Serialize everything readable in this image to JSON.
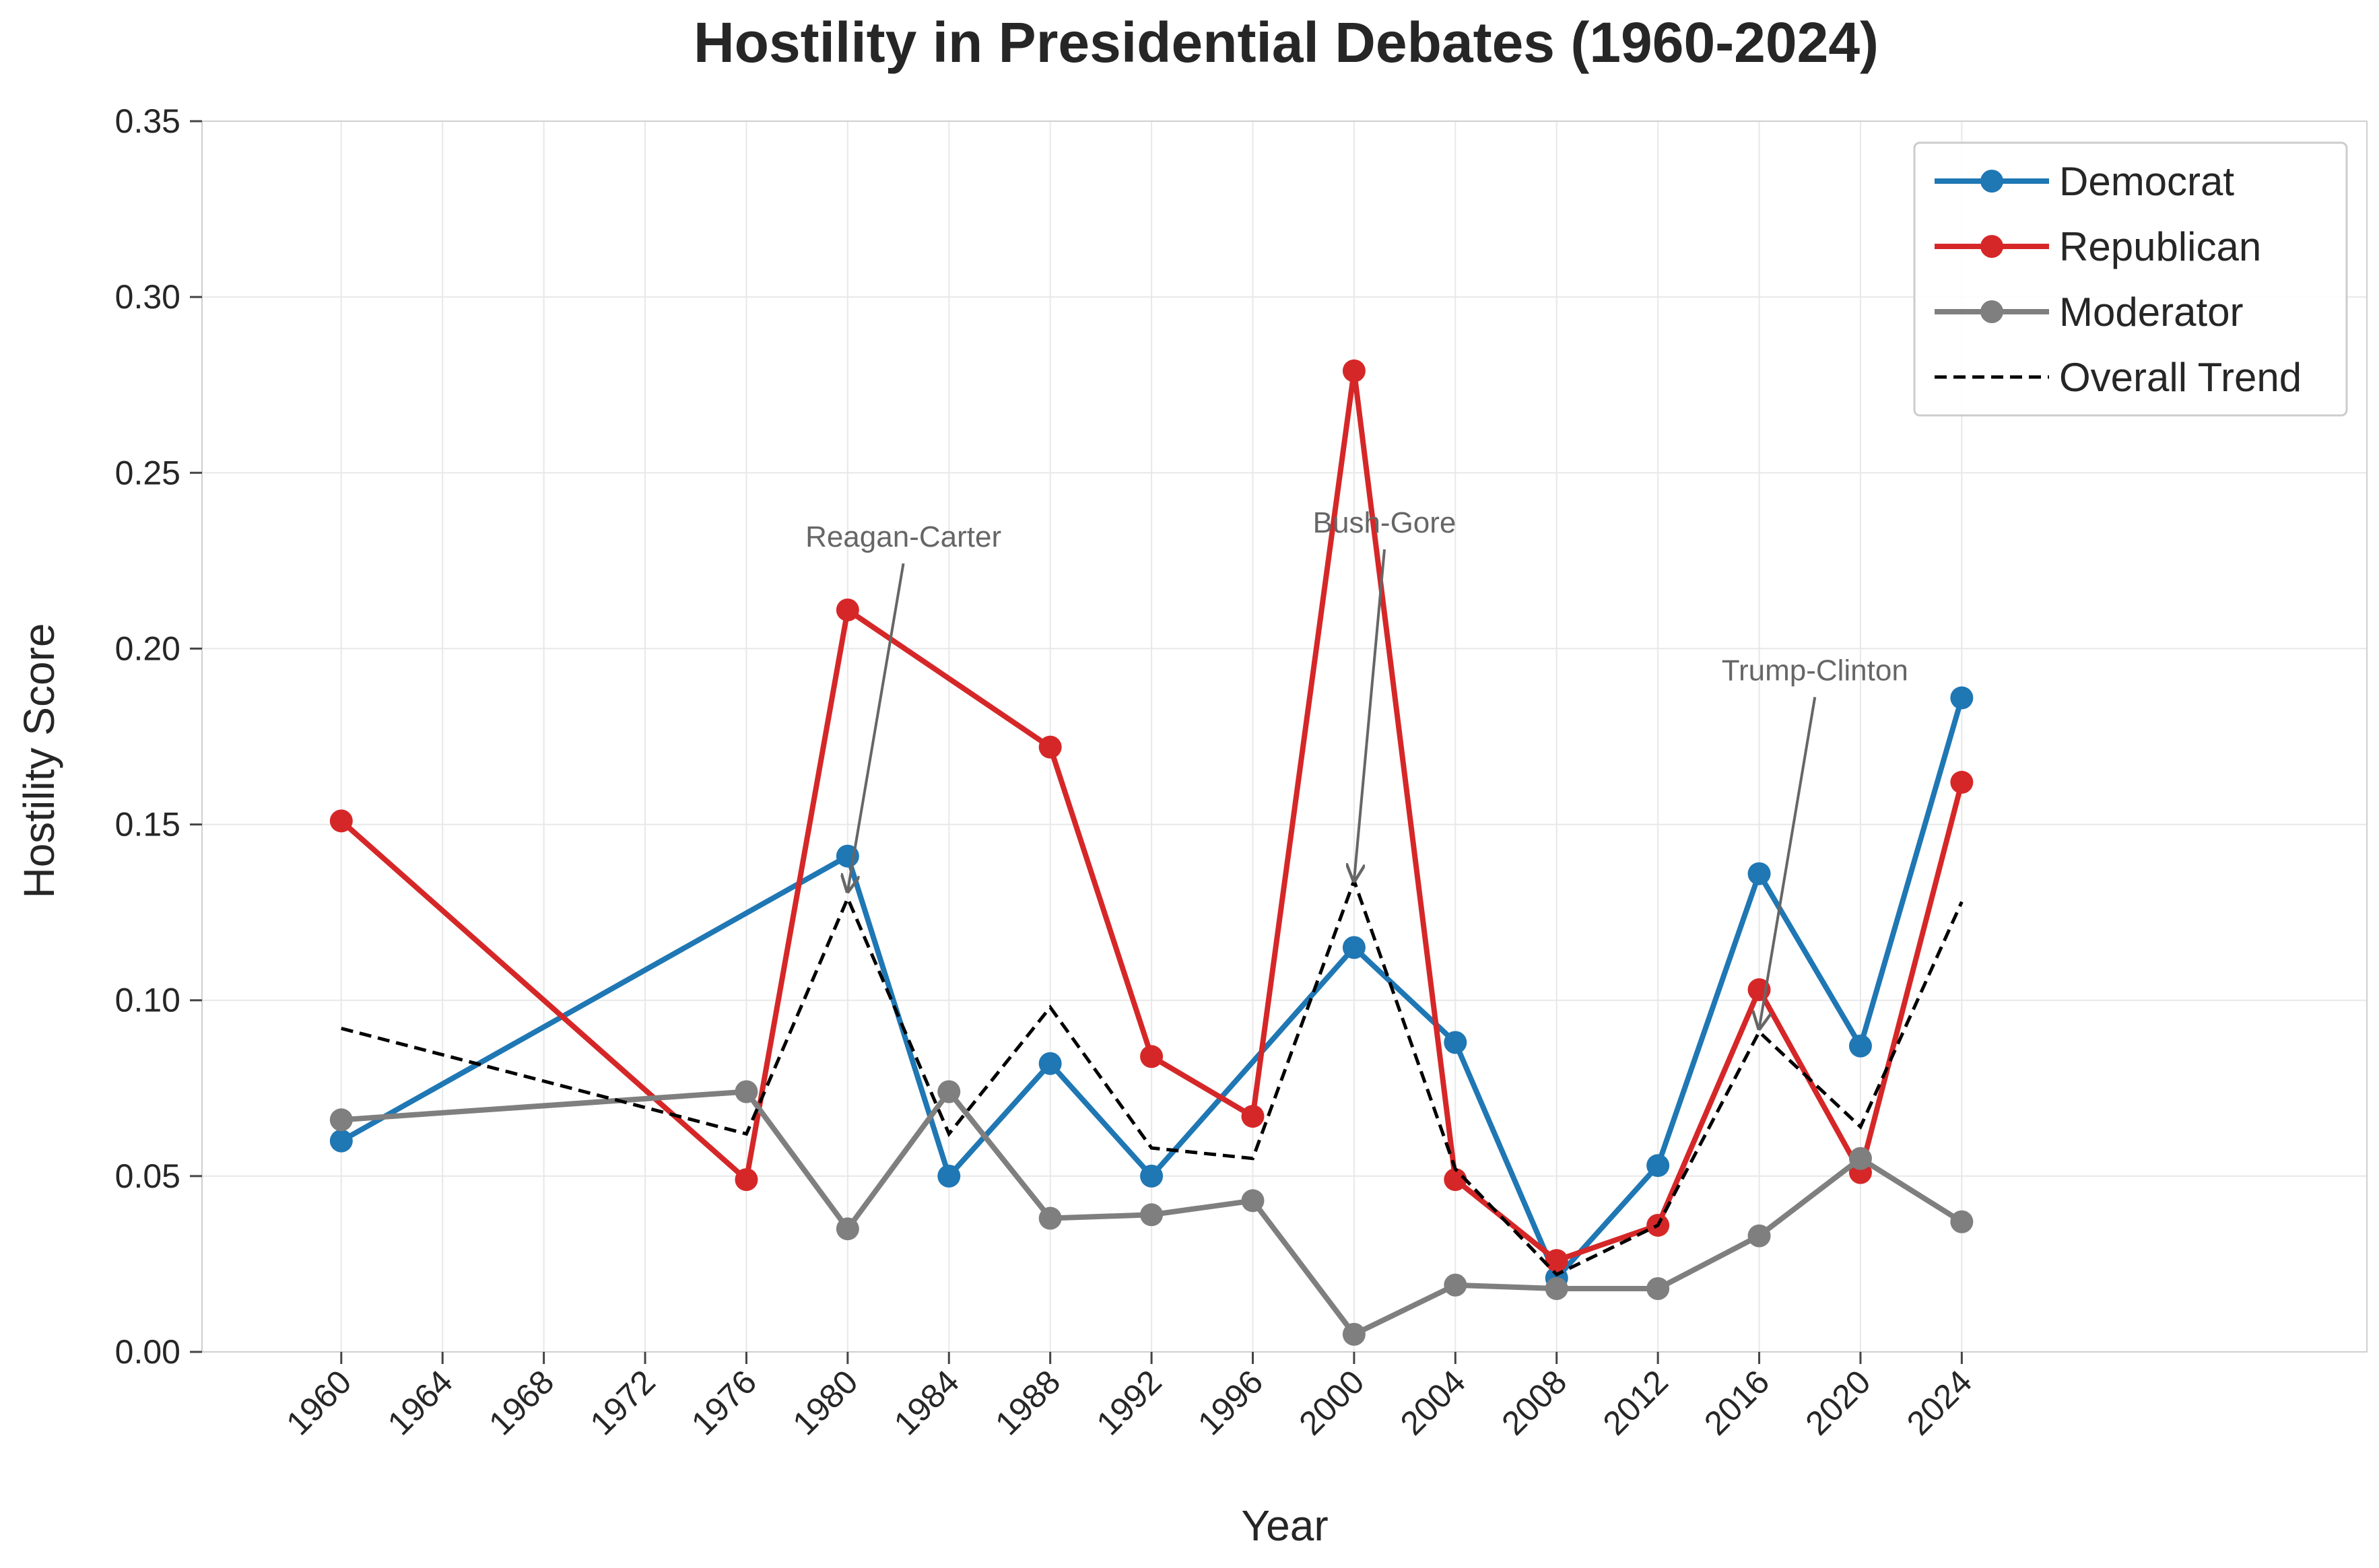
{
  "chart_data": {
    "type": "line",
    "title": "Hostility in Presidential Debates (1960-2024)",
    "xlabel": "Year",
    "ylabel": "Hostility Score",
    "xlim": [
      1954.5,
      2040
    ],
    "ylim": [
      0,
      0.35
    ],
    "x_ticks": [
      1960,
      1964,
      1968,
      1972,
      1976,
      1980,
      1984,
      1988,
      1992,
      1996,
      2000,
      2004,
      2008,
      2012,
      2016,
      2020,
      2024
    ],
    "y_ticks": [
      0.0,
      0.05,
      0.1,
      0.15,
      0.2,
      0.25,
      0.3,
      0.35
    ],
    "y_tick_labels": [
      "0.00",
      "0.05",
      "0.10",
      "0.15",
      "0.20",
      "0.25",
      "0.30",
      "0.35"
    ],
    "x_tick_rotation": 45,
    "grid": true,
    "legend_position": "top-right",
    "series": [
      {
        "name": "Democrat",
        "color": "#1f77b4",
        "style": "solid-marker",
        "x": [
          1960,
          1980,
          1984,
          1988,
          1992,
          2000,
          2004,
          2008,
          2012,
          2016,
          2020,
          2024
        ],
        "y": [
          0.06,
          0.141,
          0.05,
          0.082,
          0.05,
          0.115,
          0.088,
          0.021,
          0.053,
          0.136,
          0.087,
          0.186
        ]
      },
      {
        "name": "Republican",
        "color": "#d62728",
        "style": "solid-marker",
        "x": [
          1960,
          1976,
          1980,
          1988,
          1992,
          1996,
          2000,
          2004,
          2008,
          2012,
          2016,
          2020,
          2024
        ],
        "y": [
          0.151,
          0.049,
          0.211,
          0.172,
          0.084,
          0.067,
          0.279,
          0.049,
          0.026,
          0.036,
          0.103,
          0.051,
          0.162
        ]
      },
      {
        "name": "Moderator",
        "color": "#7f7f7f",
        "style": "solid-marker",
        "x": [
          1960,
          1976,
          1980,
          1984,
          1988,
          1992,
          1996,
          2000,
          2004,
          2008,
          2012,
          2016,
          2020,
          2024
        ],
        "y": [
          0.066,
          0.074,
          0.035,
          0.074,
          0.038,
          0.039,
          0.043,
          0.005,
          0.019,
          0.018,
          0.018,
          0.033,
          0.055,
          0.037
        ]
      },
      {
        "name": "Overall Trend",
        "color": "#000000",
        "style": "dashed",
        "x": [
          1960,
          1976,
          1980,
          1984,
          1988,
          1992,
          1996,
          2000,
          2004,
          2008,
          2012,
          2016,
          2020,
          2024
        ],
        "y": [
          0.092,
          0.062,
          0.129,
          0.062,
          0.098,
          0.058,
          0.055,
          0.134,
          0.052,
          0.022,
          0.036,
          0.091,
          0.064,
          0.128
        ]
      }
    ],
    "annotations": [
      {
        "text": "Reagan-Carter",
        "text_x": 1982.2,
        "text_y": 0.229,
        "arrow_x": 1980,
        "arrow_y": 0.131
      },
      {
        "text": "Bush-Gore",
        "text_x": 2001.2,
        "text_y": 0.233,
        "arrow_x": 2000,
        "arrow_y": 0.134
      },
      {
        "text": "Trump-Clinton",
        "text_x": 2018.2,
        "text_y": 0.191,
        "arrow_x": 2016,
        "arrow_y": 0.092
      }
    ],
    "colors": {
      "annotation": "#666666",
      "grid": "#e8e8e8",
      "text": "#262626"
    }
  }
}
